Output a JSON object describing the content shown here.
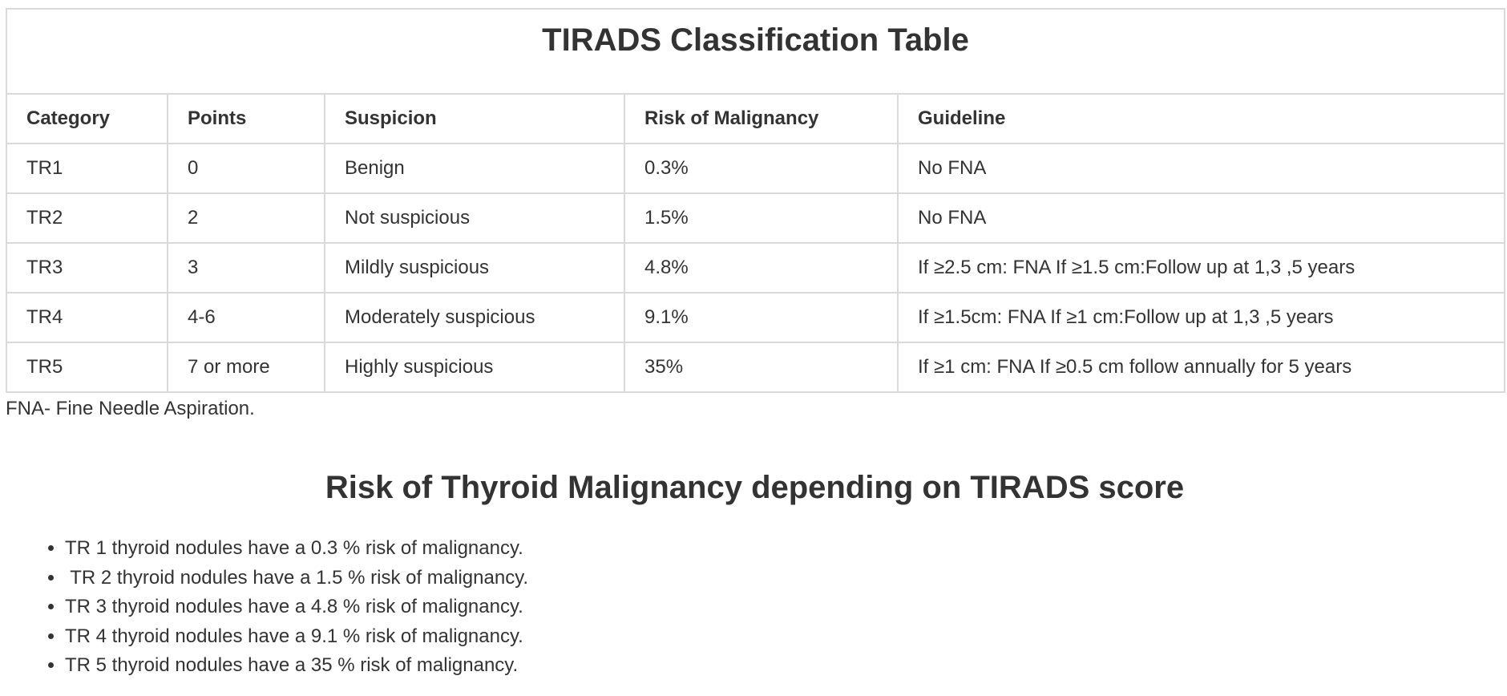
{
  "table": {
    "title": "TIRADS Classification Table",
    "headers": [
      "Category",
      "Points",
      "Suspicion",
      "Risk of Malignancy",
      "Guideline"
    ],
    "rows": [
      [
        "TR1",
        "0",
        "Benign",
        "0.3%",
        "No FNA"
      ],
      [
        "TR2",
        "2",
        "Not suspicious",
        "1.5%",
        "No FNA"
      ],
      [
        "TR3",
        "3",
        "Mildly suspicious",
        "4.8%",
        "If ≥2.5 cm: FNA If ≥1.5 cm:Follow up at 1,3 ,5 years"
      ],
      [
        "TR4",
        "4-6",
        "Moderately suspicious",
        "9.1%",
        "If ≥1.5cm: FNA If ≥1 cm:Follow up at 1,3 ,5 years"
      ],
      [
        "TR5",
        "7 or more",
        "Highly suspicious",
        "35%",
        "If ≥1 cm: FNA If ≥0.5 cm follow annually for 5 years"
      ]
    ]
  },
  "footnote": "FNA- Fine Needle Aspiration.",
  "section": {
    "heading": "Risk of Thyroid Malignancy depending on TIRADS score",
    "items": [
      "TR 1 thyroid nodules have a 0.3 % risk of malignancy.",
      " TR 2 thyroid nodules have a 1.5 % risk of malignancy.",
      "TR 3 thyroid nodules have a 4.8 % risk of malignancy.",
      "TR 4 thyroid nodules have a 9.1 % risk of malignancy.",
      "TR 5 thyroid nodules have a 35 % risk of malignancy."
    ]
  }
}
